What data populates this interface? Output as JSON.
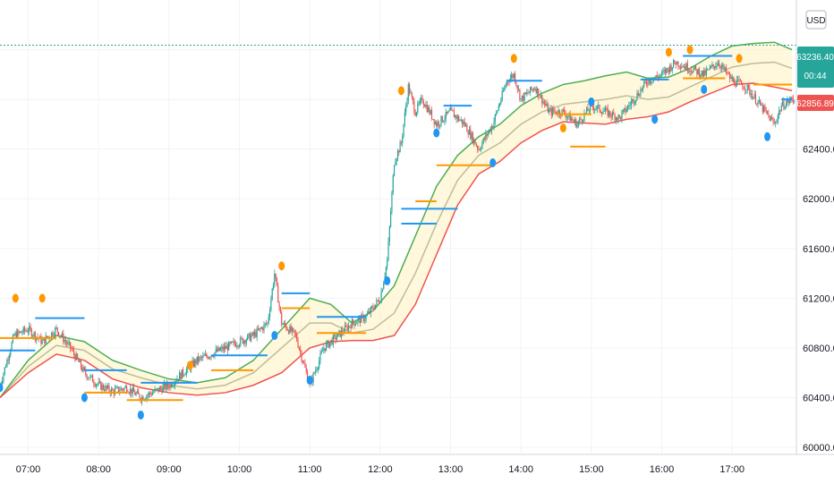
{
  "currency_button": "USD",
  "price_label_last": {
    "value": "63236.40",
    "countdown": "00:44",
    "color": "#26a69a"
  },
  "price_label_red": {
    "value": "62856.89",
    "color": "#ef5350"
  },
  "colors": {
    "candle_up": "#26a69a",
    "candle_down": "#ef5350",
    "band_upper": "#4caf50",
    "band_lower": "#ef5350",
    "band_mid": "#bdbd9a",
    "band_fill": "#fff3c4",
    "level_blue": "#2196f3",
    "level_orange": "#ff9800",
    "dot_blue": "#2196f3",
    "dot_orange": "#ff9800",
    "dotted_line": "#26a69a"
  },
  "chart_data": {
    "type": "line",
    "symbol_currency": "USD",
    "y_ticks": [
      "63200.00",
      "62800.00",
      "62400.00",
      "62000.00",
      "61600.00",
      "61200.00",
      "60800.00",
      "60400.00",
      "60000.00"
    ],
    "y_tick_values": [
      63200,
      62800,
      62400,
      62000,
      61600,
      61200,
      60800,
      60400,
      60000
    ],
    "x_ticks": [
      "07:00",
      "08:00",
      "09:00",
      "10:00",
      "11:00",
      "12:00",
      "13:00",
      "14:00",
      "15:00",
      "16:00",
      "17:00"
    ],
    "x_tick_values": [
      7,
      8,
      9,
      10,
      11,
      12,
      13,
      14,
      15,
      16,
      17
    ],
    "ylim": [
      59950,
      63600
    ],
    "xlim": [
      6.6,
      17.9
    ],
    "last_price": 63236.4,
    "series": [
      {
        "style": "band-upper",
        "x": [
          6.6,
          7.0,
          7.4,
          7.8,
          8.2,
          8.6,
          9.0,
          9.4,
          9.8,
          10.2,
          10.6,
          11.0,
          11.3,
          11.6,
          11.9,
          12.2,
          12.5,
          12.8,
          13.1,
          13.4,
          13.7,
          14.0,
          14.3,
          14.6,
          14.9,
          15.2,
          15.5,
          15.8,
          16.1,
          16.4,
          16.7,
          17.0,
          17.3,
          17.6,
          17.85
        ],
        "y": [
          60400,
          60700,
          60900,
          60850,
          60700,
          60620,
          60550,
          60520,
          60560,
          60700,
          60950,
          61200,
          61150,
          61000,
          61100,
          61300,
          61700,
          62100,
          62350,
          62500,
          62600,
          62750,
          62850,
          62920,
          62950,
          62990,
          63020,
          62970,
          62980,
          63050,
          63150,
          63230,
          63250,
          63260,
          63200
        ]
      },
      {
        "style": "band-mid",
        "x": [
          6.6,
          7.0,
          7.4,
          7.8,
          8.2,
          8.6,
          9.0,
          9.4,
          9.8,
          10.2,
          10.6,
          11.0,
          11.3,
          11.6,
          11.9,
          12.2,
          12.5,
          12.8,
          13.1,
          13.4,
          13.7,
          14.0,
          14.3,
          14.6,
          14.9,
          15.2,
          15.5,
          15.8,
          16.1,
          16.4,
          16.7,
          17.0,
          17.3,
          17.6,
          17.85
        ],
        "y": [
          60400,
          60650,
          60820,
          60780,
          60630,
          60560,
          60500,
          60470,
          60500,
          60600,
          60800,
          61000,
          61000,
          60920,
          60950,
          61080,
          61400,
          61800,
          62150,
          62350,
          62450,
          62600,
          62700,
          62760,
          62780,
          62800,
          62830,
          62800,
          62820,
          62900,
          62980,
          63060,
          63090,
          63100,
          63050
        ]
      },
      {
        "style": "band-lower",
        "x": [
          6.6,
          7.0,
          7.4,
          7.8,
          8.2,
          8.6,
          9.0,
          9.4,
          9.8,
          10.2,
          10.6,
          11.0,
          11.3,
          11.6,
          11.9,
          12.2,
          12.5,
          12.8,
          13.1,
          13.4,
          13.7,
          14.0,
          14.3,
          14.6,
          14.9,
          15.2,
          15.5,
          15.8,
          16.1,
          16.4,
          16.7,
          17.0,
          17.3,
          17.6,
          17.85
        ],
        "y": [
          60400,
          60600,
          60750,
          60700,
          60550,
          60480,
          60440,
          60420,
          60440,
          60500,
          60600,
          60800,
          60850,
          60860,
          60860,
          60900,
          61150,
          61550,
          61950,
          62200,
          62300,
          62450,
          62550,
          62620,
          62610,
          62600,
          62640,
          62660,
          62700,
          62780,
          62850,
          62920,
          62930,
          62900,
          62870
        ]
      }
    ],
    "price_path": {
      "x": [
        6.6,
        6.8,
        7.0,
        7.2,
        7.4,
        7.6,
        7.8,
        8.0,
        8.2,
        8.4,
        8.6,
        8.8,
        9.0,
        9.2,
        9.4,
        9.6,
        9.8,
        10.0,
        10.2,
        10.4,
        10.5,
        10.6,
        10.8,
        11.0,
        11.2,
        11.4,
        11.6,
        11.8,
        12.0,
        12.1,
        12.2,
        12.3,
        12.4,
        12.5,
        12.6,
        12.8,
        13.0,
        13.2,
        13.4,
        13.6,
        13.8,
        13.9,
        14.0,
        14.2,
        14.4,
        14.6,
        14.8,
        15.0,
        15.2,
        15.4,
        15.6,
        15.8,
        16.0,
        16.2,
        16.4,
        16.6,
        16.8,
        17.0,
        17.2,
        17.4,
        17.6,
        17.7,
        17.85
      ],
      "y": [
        60500,
        60900,
        60950,
        60850,
        60950,
        60800,
        60600,
        60500,
        60450,
        60480,
        60400,
        60450,
        60500,
        60600,
        60700,
        60750,
        60800,
        60850,
        60900,
        61000,
        61400,
        61000,
        60900,
        60500,
        60800,
        60900,
        61000,
        61050,
        61200,
        61500,
        62300,
        62450,
        62900,
        62700,
        62800,
        62600,
        62700,
        62600,
        62400,
        62600,
        62950,
        63000,
        62800,
        62900,
        62700,
        62700,
        62600,
        62750,
        62700,
        62650,
        62800,
        62950,
        63000,
        63100,
        63050,
        63000,
        63100,
        62950,
        62900,
        62750,
        62600,
        62750,
        62800
      ]
    },
    "levels": [
      {
        "color": "blue",
        "x0": 6.6,
        "x1": 7.1,
        "y": 60780
      },
      {
        "color": "blue",
        "x0": 7.1,
        "x1": 7.8,
        "y": 61040
      },
      {
        "color": "orange",
        "x0": 6.6,
        "x1": 7.4,
        "y": 60880
      },
      {
        "color": "blue",
        "x0": 7.8,
        "x1": 8.4,
        "y": 60620
      },
      {
        "color": "orange",
        "x0": 7.8,
        "x1": 8.4,
        "y": 60440
      },
      {
        "color": "blue",
        "x0": 8.6,
        "x1": 9.4,
        "y": 60520
      },
      {
        "color": "orange",
        "x0": 8.4,
        "x1": 9.2,
        "y": 60380
      },
      {
        "color": "blue",
        "x0": 9.6,
        "x1": 10.4,
        "y": 60740
      },
      {
        "color": "orange",
        "x0": 9.6,
        "x1": 10.2,
        "y": 60620
      },
      {
        "color": "blue",
        "x0": 10.6,
        "x1": 11.0,
        "y": 61240
      },
      {
        "color": "orange",
        "x0": 10.6,
        "x1": 11.0,
        "y": 61120
      },
      {
        "color": "blue",
        "x0": 11.1,
        "x1": 11.8,
        "y": 61050
      },
      {
        "color": "orange",
        "x0": 11.1,
        "x1": 11.8,
        "y": 60920
      },
      {
        "color": "blue",
        "x0": 12.3,
        "x1": 13.1,
        "y": 61920
      },
      {
        "color": "orange",
        "x0": 12.5,
        "x1": 12.8,
        "y": 61980
      },
      {
        "color": "blue",
        "x0": 12.3,
        "x1": 12.8,
        "y": 61800
      },
      {
        "color": "orange",
        "x0": 12.8,
        "x1": 13.6,
        "y": 62270
      },
      {
        "color": "blue",
        "x0": 12.9,
        "x1": 13.3,
        "y": 62750
      },
      {
        "color": "blue",
        "x0": 13.8,
        "x1": 14.3,
        "y": 62950
      },
      {
        "color": "orange",
        "x0": 14.5,
        "x1": 15.0,
        "y": 62680
      },
      {
        "color": "orange",
        "x0": 14.7,
        "x1": 15.2,
        "y": 62420
      },
      {
        "color": "blue",
        "x0": 15.7,
        "x1": 16.1,
        "y": 62960
      },
      {
        "color": "blue",
        "x0": 16.3,
        "x1": 17.0,
        "y": 63150
      },
      {
        "color": "orange",
        "x0": 16.3,
        "x1": 16.9,
        "y": 62970
      },
      {
        "color": "orange",
        "x0": 17.3,
        "x1": 17.85,
        "y": 62920
      },
      {
        "color": "blue",
        "x0": 17.7,
        "x1": 17.85,
        "y": 62800
      }
    ],
    "dots": [
      {
        "color": "orange",
        "x": 6.82,
        "y": 61200
      },
      {
        "color": "blue",
        "x": 6.6,
        "y": 60480
      },
      {
        "color": "orange",
        "x": 7.2,
        "y": 61200
      },
      {
        "color": "blue",
        "x": 7.8,
        "y": 60400
      },
      {
        "color": "blue",
        "x": 8.6,
        "y": 60260
      },
      {
        "color": "orange",
        "x": 9.3,
        "y": 60660
      },
      {
        "color": "blue",
        "x": 10.5,
        "y": 60900
      },
      {
        "color": "orange",
        "x": 10.6,
        "y": 61460
      },
      {
        "color": "blue",
        "x": 11.0,
        "y": 60540
      },
      {
        "color": "blue",
        "x": 12.1,
        "y": 61340
      },
      {
        "color": "orange",
        "x": 12.3,
        "y": 62870
      },
      {
        "color": "blue",
        "x": 12.8,
        "y": 62530
      },
      {
        "color": "blue",
        "x": 13.6,
        "y": 62290
      },
      {
        "color": "orange",
        "x": 13.9,
        "y": 63130
      },
      {
        "color": "orange",
        "x": 14.6,
        "y": 62570
      },
      {
        "color": "blue",
        "x": 15.0,
        "y": 62780
      },
      {
        "color": "blue",
        "x": 15.9,
        "y": 62640
      },
      {
        "color": "orange",
        "x": 16.1,
        "y": 63180
      },
      {
        "color": "orange",
        "x": 16.4,
        "y": 63200
      },
      {
        "color": "blue",
        "x": 16.6,
        "y": 62880
      },
      {
        "color": "orange",
        "x": 17.1,
        "y": 63130
      },
      {
        "color": "blue",
        "x": 17.5,
        "y": 62500
      }
    ]
  }
}
